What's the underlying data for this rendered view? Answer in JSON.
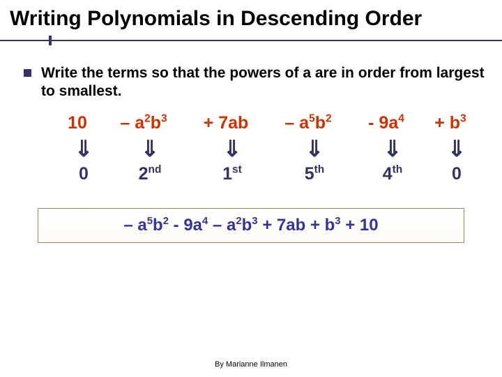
{
  "title": "Writing Polynomials in Descending Order",
  "bullet": "Write the terms so that the powers of a are in order from largest to smallest.",
  "terms": {
    "t1": "10",
    "t2_pre": " – a",
    "t2_sup1": "2",
    "t2_mid": "b",
    "t2_sup2": "3",
    "t3": " + 7ab",
    "t4_pre": " – a",
    "t4_sup1": "5",
    "t4_mid": "b",
    "t4_sup2": "2",
    "t5_pre": " - 9a",
    "t5_sup": "4",
    "t6_pre": " + b",
    "t6_sup": "3"
  },
  "arrow_glyph": "⇓",
  "orders": {
    "o1": "0",
    "o2_base": "2",
    "o2_sup": "nd",
    "o3_base": "1",
    "o3_sup": "st",
    "o4_base": "5",
    "o4_sup": "th",
    "o5_base": "4",
    "o5_sup": "th",
    "o6": "0"
  },
  "answer": {
    "p1": "– a",
    "s1": "5",
    "p2": "b",
    "s2": "2",
    "p3": " - 9a",
    "s3": "4",
    "p4": " – a",
    "s4": "2",
    "p5": "b",
    "s5": "3",
    "p6": " + 7ab + b",
    "s6": "3",
    "p7": " + 10"
  },
  "footer": "By Marianne Ilmanen",
  "colors": {
    "accent_navy": "#333366",
    "term_red": "#cc3300",
    "answer_blue": "#333399",
    "box_border": "#9a8860"
  }
}
